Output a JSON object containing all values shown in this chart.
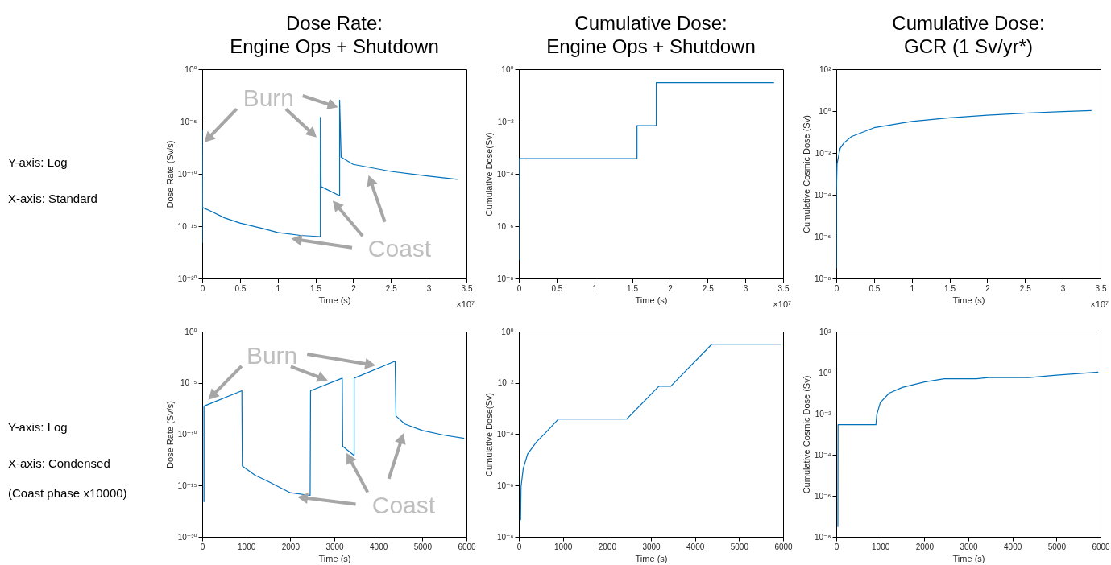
{
  "chart_data": [
    {
      "type": "line",
      "title": "Dose Rate:\nEngine Ops + Shutdown",
      "xlabel": "Time (s)",
      "ylabel": "Dose Rate (Sv/s)",
      "log": "y",
      "color": "#0072bd",
      "x": [
        0,
        0,
        0.005,
        0.1,
        0.3,
        0.5,
        0.8,
        1.0,
        1.3,
        1.565,
        1.565,
        1.575,
        1.82,
        1.82,
        1.84,
        2.0,
        2.5,
        3.0,
        3.38
      ],
      "values": [
        2.5e-17,
        1.6e-06,
        6e-14,
        3e-14,
        6e-15,
        2e-15,
        6e-16,
        2.5e-16,
        1.3e-16,
        1e-16,
        2.5e-05,
        6e-12,
        8e-13,
        0.0011,
        4e-09,
        8e-10,
        1.7e-10,
        6e-11,
        3e-11
      ],
      "xlim": [
        0,
        3.5
      ],
      "xticks": [
        0,
        0.5,
        1,
        1.5,
        2,
        2.5,
        3,
        3.5
      ],
      "ylim": [
        1e-20,
        1
      ],
      "yticks": [
        {
          "value": 1e-20,
          "label": "10⁻²⁰"
        },
        {
          "value": 1e-15,
          "label": "10⁻¹⁵"
        },
        {
          "value": 1e-10,
          "label": "10⁻¹⁰"
        },
        {
          "value": 1e-05,
          "label": "10⁻⁵"
        },
        {
          "value": 1,
          "label": "10⁰"
        }
      ],
      "annotations": [
        "Y-axis: Log",
        "X-axis: Standard",
        "Burn",
        "Coast",
        "×10⁷"
      ]
    },
    {
      "type": "line",
      "title": "Cumulative Dose:\nEngine Ops + Shutdown",
      "xlabel": "Time (s)",
      "ylabel": "Cumulative Dose(Sv)",
      "log": "y",
      "color": "#0072bd",
      "x": [
        0,
        0,
        0.003,
        1.565,
        1.565,
        1.82,
        1.82,
        3.38
      ],
      "values": [
        5e-08,
        1e-06,
        0.00038,
        0.00038,
        0.007,
        0.007,
        0.31,
        0.31
      ],
      "xlim": [
        0,
        3.5
      ],
      "xticks": [
        0,
        0.5,
        1,
        1.5,
        2,
        2.5,
        3,
        3.5
      ],
      "ylim": [
        1e-08,
        1
      ],
      "yticks": [
        {
          "value": 1e-08,
          "label": "10⁻⁸"
        },
        {
          "value": 1e-06,
          "label": "10⁻⁶"
        },
        {
          "value": 0.0001,
          "label": "10⁻⁴"
        },
        {
          "value": 0.01,
          "label": "10⁻²"
        },
        {
          "value": 1,
          "label": "10⁰"
        }
      ],
      "annotations": [
        "×10⁷"
      ]
    },
    {
      "type": "line",
      "title": "Cumulative Dose:\nGCR (1 Sv/yr*)",
      "xlabel": "Time (s)",
      "ylabel": "Cumulative Cosmic Dose (Sv)",
      "log": "y",
      "color": "#0072bd",
      "x": [
        0,
        0.001,
        0.01,
        0.05,
        0.1,
        0.2,
        0.5,
        1,
        1.5,
        2,
        2.5,
        3,
        3.38
      ],
      "values": [
        3e-08,
        0.0001,
        0.003,
        0.016,
        0.03,
        0.06,
        0.16,
        0.32,
        0.48,
        0.63,
        0.8,
        0.95,
        1.05
      ],
      "xlim": [
        0,
        3.5
      ],
      "xticks": [
        0,
        0.5,
        1,
        1.5,
        2,
        2.5,
        3,
        3.5
      ],
      "ylim": [
        1e-08,
        100
      ],
      "yticks": [
        {
          "value": 1e-08,
          "label": "10⁻⁸"
        },
        {
          "value": 1e-06,
          "label": "10⁻⁶"
        },
        {
          "value": 0.0001,
          "label": "10⁻⁴"
        },
        {
          "value": 0.01,
          "label": "10⁻²"
        },
        {
          "value": 1,
          "label": "10⁰"
        },
        {
          "value": 100,
          "label": "10²"
        }
      ],
      "annotations": [
        "×10⁷"
      ]
    },
    {
      "type": "line",
      "xlabel": "Time (s)",
      "ylabel": "Dose Rate (Sv/s)",
      "log": "y",
      "color": "#0072bd",
      "x": [
        40,
        40,
        900,
        910,
        1200,
        1500,
        2000,
        2450,
        2460,
        3180,
        3190,
        3450,
        3450,
        4380,
        4400,
        4600,
        5000,
        5500,
        5950
      ],
      "values": [
        2.5e-17,
        5.5e-08,
        1.7e-06,
        8e-14,
        1e-14,
        2.5e-15,
        2e-16,
        1.1e-16,
        1.7e-06,
        2.9e-05,
        6.6e-12,
        8.3e-13,
        2.9e-05,
        0.0013,
        5.9e-09,
        1e-09,
        2.3e-10,
        8e-11,
        4e-11
      ],
      "xlim": [
        0,
        6000
      ],
      "xticks": [
        0,
        1000,
        2000,
        3000,
        4000,
        5000,
        6000
      ],
      "ylim": [
        1e-20,
        1
      ],
      "yticks": [
        {
          "value": 1e-20,
          "label": "10⁻²⁰"
        },
        {
          "value": 1e-15,
          "label": "10⁻¹⁵"
        },
        {
          "value": 1e-10,
          "label": "10⁻¹⁰"
        },
        {
          "value": 1e-05,
          "label": "10⁻⁵"
        },
        {
          "value": 1,
          "label": "10⁰"
        }
      ],
      "annotations": [
        "Y-axis: Log",
        "X-axis: Condensed",
        "(Coast phase x10000)",
        "Burn",
        "Coast"
      ]
    },
    {
      "type": "line",
      "xlabel": "Time (s)",
      "ylabel": "Cumulative Dose(Sv)",
      "log": "y",
      "color": "#0072bd",
      "x": [
        40,
        50,
        100,
        200,
        400,
        600,
        900,
        2450,
        3180,
        3450,
        4380,
        5950
      ],
      "values": [
        4.5e-08,
        9e-07,
        4.6e-06,
        1.7e-05,
        5e-05,
        0.00011,
        0.00039,
        0.00039,
        0.0074,
        0.0074,
        0.32,
        0.32
      ],
      "xlim": [
        0,
        6000
      ],
      "xticks": [
        0,
        1000,
        2000,
        3000,
        4000,
        5000,
        6000
      ],
      "ylim": [
        1e-08,
        1
      ],
      "yticks": [
        {
          "value": 1e-08,
          "label": "10⁻⁸"
        },
        {
          "value": 1e-06,
          "label": "10⁻⁶"
        },
        {
          "value": 0.0001,
          "label": "10⁻⁴"
        },
        {
          "value": 0.01,
          "label": "10⁻²"
        },
        {
          "value": 1,
          "label": "10⁰"
        }
      ]
    },
    {
      "type": "line",
      "xlabel": "Time (s)",
      "ylabel": "Cumulative Cosmic Dose (Sv)",
      "log": "y",
      "color": "#0072bd",
      "x": [
        36,
        40,
        900,
        920,
        1000,
        1200,
        1500,
        2000,
        2450,
        3180,
        3450,
        4380,
        5000,
        5950
      ],
      "values": [
        3e-08,
        0.0029,
        0.0029,
        0.009,
        0.035,
        0.1,
        0.19,
        0.35,
        0.5,
        0.5,
        0.58,
        0.58,
        0.75,
        1.05
      ],
      "xlim": [
        0,
        6000
      ],
      "xticks": [
        0,
        1000,
        2000,
        3000,
        4000,
        5000,
        6000
      ],
      "ylim": [
        1e-08,
        100
      ],
      "yticks": [
        {
          "value": 1e-08,
          "label": "10⁻⁸"
        },
        {
          "value": 1e-06,
          "label": "10⁻⁶"
        },
        {
          "value": 0.0001,
          "label": "10⁻⁴"
        },
        {
          "value": 0.01,
          "label": "10⁻²"
        },
        {
          "value": 1,
          "label": "10⁰"
        },
        {
          "value": 100,
          "label": "10²"
        }
      ]
    }
  ]
}
